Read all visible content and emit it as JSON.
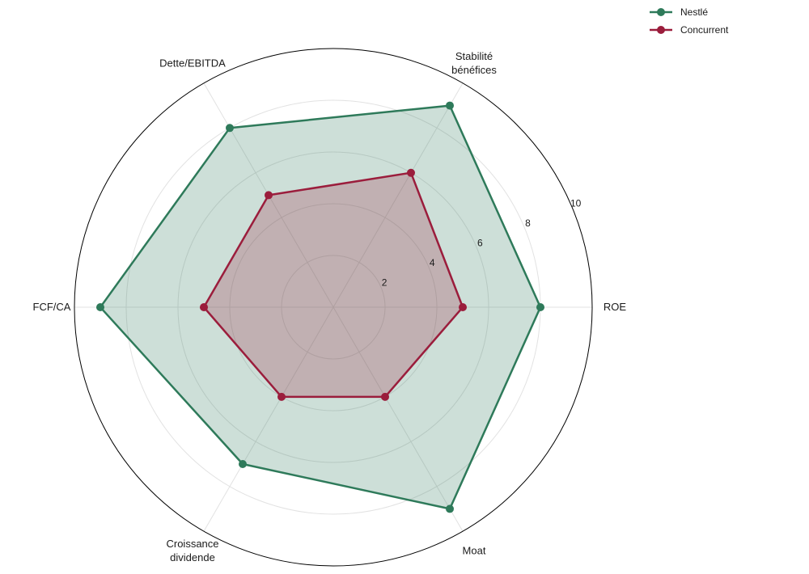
{
  "chart_data": {
    "type": "radar",
    "title": "",
    "categories": [
      "ROE",
      "Stabilité\nbénéfices",
      "Dette/EBITDA",
      "FCF/CA",
      "Croissance\ndividende",
      "Moat"
    ],
    "rlim": [
      0,
      10
    ],
    "r_ticks": [
      2,
      4,
      6,
      8,
      10
    ],
    "grid": true,
    "legend_position": "top-right",
    "series": [
      {
        "name": "Nestlé",
        "color": "#2e7a5a",
        "fill_color": "#2e7a5a",
        "values": [
          8,
          9,
          8,
          9,
          7,
          9
        ]
      },
      {
        "name": "Concurrent",
        "color": "#9b1d3c",
        "fill_color": "#9b1d3c",
        "values": [
          5,
          6,
          5,
          5,
          4,
          4
        ]
      }
    ]
  }
}
